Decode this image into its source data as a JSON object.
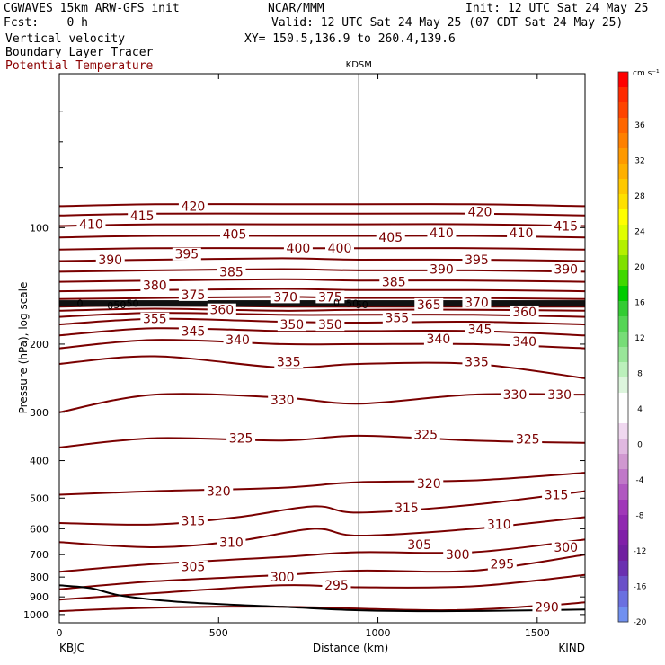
{
  "header": {
    "model": "CGWAVES 15km ARW-GFS init",
    "fcst": "Fcst:    0 h",
    "source": "NCAR/MMM",
    "init": "Init: 12 UTC Sat 24 May 25",
    "valid": "Valid: 12 UTC Sat 24 May 25 (07 CDT Sat 24 May 25)",
    "xy": "XY= 150.5,136.9 to 260.4,139.6",
    "field1": "Vertical velocity",
    "field2": "Boundary Layer Tracer",
    "field3": "Potential Temperature"
  },
  "chart_data": {
    "type": "line",
    "title": "",
    "station_top": "KDSM",
    "station_left": "KBJC",
    "station_right": "KIND",
    "xlabel": "Distance (km)",
    "ylabel": "Pressure (hPa), log scale",
    "xlim": [
      0,
      1650
    ],
    "x_ticks": [
      "0",
      "500",
      "1000",
      "1500"
    ],
    "ylim": [
      1050,
      40
    ],
    "y_scale": "log",
    "y_ticks": [
      "100",
      "200",
      "300",
      "400",
      "500",
      "600",
      "700",
      "800",
      "900",
      "1000"
    ],
    "kdsm_distance_km": 940,
    "contour_field": "Potential Temperature (K)",
    "contour_interval": 5,
    "contour_colour": "#7a0000",
    "contours": [
      {
        "value": 290,
        "points": [
          [
            0,
            980
          ],
          [
            300,
            960
          ],
          [
            700,
            955
          ],
          [
            1200,
            975
          ],
          [
            1500,
            950
          ],
          [
            1650,
            930
          ]
        ]
      },
      {
        "value": 295,
        "points": [
          [
            0,
            915
          ],
          [
            300,
            880
          ],
          [
            700,
            840
          ],
          [
            940,
            850
          ],
          [
            1300,
            845
          ],
          [
            1650,
            790
          ]
        ]
      },
      {
        "value": 300,
        "points": [
          [
            0,
            860
          ],
          [
            300,
            820
          ],
          [
            700,
            790
          ],
          [
            940,
            770
          ],
          [
            1300,
            770
          ],
          [
            1650,
            700
          ]
        ]
      },
      {
        "value": 305,
        "points": [
          [
            0,
            775
          ],
          [
            300,
            740
          ],
          [
            700,
            710
          ],
          [
            940,
            690
          ],
          [
            1300,
            690
          ],
          [
            1650,
            640
          ]
        ]
      },
      {
        "value": 310,
        "points": [
          [
            0,
            650
          ],
          [
            300,
            670
          ],
          [
            560,
            645
          ],
          [
            800,
            600
          ],
          [
            940,
            625
          ],
          [
            1300,
            600
          ],
          [
            1650,
            560
          ]
        ]
      },
      {
        "value": 315,
        "points": [
          [
            0,
            580
          ],
          [
            300,
            585
          ],
          [
            560,
            560
          ],
          [
            800,
            525
          ],
          [
            940,
            545
          ],
          [
            1300,
            520
          ],
          [
            1650,
            480
          ]
        ]
      },
      {
        "value": 320,
        "points": [
          [
            0,
            490
          ],
          [
            300,
            480
          ],
          [
            700,
            470
          ],
          [
            940,
            455
          ],
          [
            1300,
            450
          ],
          [
            1650,
            430
          ]
        ]
      },
      {
        "value": 325,
        "points": [
          [
            0,
            370
          ],
          [
            300,
            350
          ],
          [
            700,
            355
          ],
          [
            940,
            345
          ],
          [
            1300,
            355
          ],
          [
            1650,
            360
          ]
        ]
      },
      {
        "value": 330,
        "points": [
          [
            0,
            300
          ],
          [
            300,
            270
          ],
          [
            700,
            275
          ],
          [
            940,
            285
          ],
          [
            1300,
            270
          ],
          [
            1650,
            270
          ]
        ]
      },
      {
        "value": 335,
        "points": [
          [
            0,
            225
          ],
          [
            300,
            215
          ],
          [
            700,
            230
          ],
          [
            940,
            225
          ],
          [
            1300,
            225
          ],
          [
            1650,
            245
          ]
        ]
      },
      {
        "value": 340,
        "points": [
          [
            0,
            205
          ],
          [
            300,
            195
          ],
          [
            700,
            200
          ],
          [
            940,
            200
          ],
          [
            1300,
            200
          ],
          [
            1650,
            205
          ]
        ]
      },
      {
        "value": 345,
        "points": [
          [
            0,
            190
          ],
          [
            300,
            182
          ],
          [
            700,
            185
          ],
          [
            940,
            185
          ],
          [
            1300,
            185
          ],
          [
            1650,
            190
          ]
        ]
      },
      {
        "value": 350,
        "points": [
          [
            0,
            178
          ],
          [
            300,
            172
          ],
          [
            700,
            175
          ],
          [
            940,
            176
          ],
          [
            1300,
            175
          ],
          [
            1650,
            178
          ]
        ]
      },
      {
        "value": 355,
        "points": [
          [
            0,
            170
          ],
          [
            300,
            166
          ],
          [
            700,
            168
          ],
          [
            940,
            168
          ],
          [
            1300,
            168
          ],
          [
            1650,
            170
          ]
        ]
      },
      {
        "value": 360,
        "points": [
          [
            0,
            164
          ],
          [
            300,
            162
          ],
          [
            700,
            164
          ],
          [
            940,
            163
          ],
          [
            1300,
            163
          ],
          [
            1650,
            164
          ]
        ]
      },
      {
        "value": 365,
        "points": [
          [
            0,
            160
          ],
          [
            300,
            159
          ],
          [
            700,
            160
          ],
          [
            940,
            160
          ],
          [
            1300,
            160
          ],
          [
            1650,
            160
          ]
        ]
      },
      {
        "value": 370,
        "points": [
          [
            0,
            157
          ],
          [
            300,
            157
          ],
          [
            700,
            157
          ],
          [
            940,
            157
          ],
          [
            1300,
            157
          ],
          [
            1650,
            157
          ]
        ]
      },
      {
        "value": 375,
        "points": [
          [
            0,
            153
          ],
          [
            300,
            152
          ],
          [
            700,
            151
          ],
          [
            940,
            152
          ],
          [
            1300,
            152
          ],
          [
            1650,
            153
          ]
        ]
      },
      {
        "value": 380,
        "points": [
          [
            0,
            146
          ],
          [
            300,
            145
          ],
          [
            700,
            144
          ],
          [
            940,
            145
          ],
          [
            1300,
            145
          ],
          [
            1650,
            146
          ]
        ]
      },
      {
        "value": 385,
        "points": [
          [
            0,
            138
          ],
          [
            300,
            137
          ],
          [
            700,
            136
          ],
          [
            940,
            137
          ],
          [
            1300,
            137
          ],
          [
            1650,
            138
          ]
        ]
      },
      {
        "value": 390,
        "points": [
          [
            0,
            130
          ],
          [
            300,
            129
          ],
          [
            700,
            128
          ],
          [
            940,
            129
          ],
          [
            1300,
            129
          ],
          [
            1650,
            130
          ]
        ]
      },
      {
        "value": 395,
        "points": [
          [
            0,
            122
          ],
          [
            300,
            121
          ],
          [
            700,
            120
          ],
          [
            940,
            121
          ],
          [
            1300,
            121
          ],
          [
            1650,
            122
          ]
        ]
      },
      {
        "value": 400,
        "points": [
          [
            0,
            114
          ],
          [
            300,
            113
          ],
          [
            700,
            113
          ],
          [
            940,
            113
          ],
          [
            1300,
            113
          ],
          [
            1650,
            114
          ]
        ]
      },
      {
        "value": 405,
        "points": [
          [
            0,
            106
          ],
          [
            300,
            105
          ],
          [
            700,
            105
          ],
          [
            940,
            105
          ],
          [
            1300,
            105
          ],
          [
            1650,
            106
          ]
        ]
      },
      {
        "value": 410,
        "points": [
          [
            0,
            99
          ],
          [
            300,
            98
          ],
          [
            700,
            98
          ],
          [
            940,
            98
          ],
          [
            1300,
            98
          ],
          [
            1650,
            99
          ]
        ]
      },
      {
        "value": 415,
        "points": [
          [
            0,
            93
          ],
          [
            300,
            92
          ],
          [
            700,
            92
          ],
          [
            940,
            92
          ],
          [
            1300,
            92
          ],
          [
            1650,
            93
          ]
        ]
      },
      {
        "value": 420,
        "points": [
          [
            0,
            88
          ],
          [
            300,
            87
          ],
          [
            700,
            87
          ],
          [
            940,
            87
          ],
          [
            1300,
            87
          ],
          [
            1650,
            88
          ]
        ]
      }
    ],
    "contour_labels": [
      {
        "text": "410",
        "x": 100,
        "p": 98
      },
      {
        "text": "415",
        "x": 260,
        "p": 93
      },
      {
        "text": "420",
        "x": 420,
        "p": 88
      },
      {
        "text": "405",
        "x": 550,
        "p": 104
      },
      {
        "text": "400",
        "x": 750,
        "p": 113
      },
      {
        "text": "400",
        "x": 880,
        "p": 113
      },
      {
        "text": "405",
        "x": 1040,
        "p": 106
      },
      {
        "text": "410",
        "x": 1200,
        "p": 103
      },
      {
        "text": "420",
        "x": 1320,
        "p": 91
      },
      {
        "text": "410",
        "x": 1450,
        "p": 103
      },
      {
        "text": "415",
        "x": 1590,
        "p": 99
      },
      {
        "text": "390",
        "x": 160,
        "p": 121
      },
      {
        "text": "395",
        "x": 400,
        "p": 117
      },
      {
        "text": "385",
        "x": 540,
        "p": 130
      },
      {
        "text": "395",
        "x": 1310,
        "p": 121
      },
      {
        "text": "390",
        "x": 1200,
        "p": 128
      },
      {
        "text": "390",
        "x": 1590,
        "p": 128
      },
      {
        "text": "380",
        "x": 300,
        "p": 141
      },
      {
        "text": "375",
        "x": 420,
        "p": 149
      },
      {
        "text": "385",
        "x": 1050,
        "p": 138
      },
      {
        "text": "370",
        "x": 710,
        "p": 151
      },
      {
        "text": "375",
        "x": 850,
        "p": 151
      },
      {
        "text": "365",
        "x": 1160,
        "p": 158
      },
      {
        "text": "370",
        "x": 1310,
        "p": 156
      },
      {
        "text": "360",
        "x": 510,
        "p": 163
      },
      {
        "text": "360",
        "x": 1460,
        "p": 165
      },
      {
        "text": "355",
        "x": 300,
        "p": 172
      },
      {
        "text": "355",
        "x": 1060,
        "p": 171
      },
      {
        "text": "350",
        "x": 730,
        "p": 178
      },
      {
        "text": "350",
        "x": 850,
        "p": 178
      },
      {
        "text": "345",
        "x": 420,
        "p": 185
      },
      {
        "text": "345",
        "x": 1320,
        "p": 183
      },
      {
        "text": "340",
        "x": 560,
        "p": 195
      },
      {
        "text": "340",
        "x": 1190,
        "p": 194
      },
      {
        "text": "340",
        "x": 1460,
        "p": 197
      },
      {
        "text": "335",
        "x": 720,
        "p": 222
      },
      {
        "text": "335",
        "x": 1310,
        "p": 222
      },
      {
        "text": "330",
        "x": 700,
        "p": 279
      },
      {
        "text": "330",
        "x": 1430,
        "p": 270
      },
      {
        "text": "330",
        "x": 1570,
        "p": 270
      },
      {
        "text": "325",
        "x": 570,
        "p": 350
      },
      {
        "text": "325",
        "x": 1150,
        "p": 342
      },
      {
        "text": "325",
        "x": 1470,
        "p": 352
      },
      {
        "text": "320",
        "x": 500,
        "p": 480
      },
      {
        "text": "320",
        "x": 1160,
        "p": 458
      },
      {
        "text": "315",
        "x": 420,
        "p": 572
      },
      {
        "text": "315",
        "x": 1090,
        "p": 530
      },
      {
        "text": "315",
        "x": 1560,
        "p": 490
      },
      {
        "text": "310",
        "x": 540,
        "p": 650
      },
      {
        "text": "310",
        "x": 1380,
        "p": 585
      },
      {
        "text": "305",
        "x": 420,
        "p": 752
      },
      {
        "text": "305",
        "x": 1130,
        "p": 660
      },
      {
        "text": "300",
        "x": 700,
        "p": 800
      },
      {
        "text": "300",
        "x": 1250,
        "p": 700
      },
      {
        "text": "300",
        "x": 1590,
        "p": 670
      },
      {
        "text": "295",
        "x": 870,
        "p": 838
      },
      {
        "text": "295",
        "x": 1390,
        "p": 740
      },
      {
        "text": "290",
        "x": 1530,
        "p": 955
      }
    ],
    "tracer_labels": [
      {
        "text": "0",
        "x": 65,
        "p": 157
      },
      {
        "text": "0",
        "x": 160,
        "p": 159
      },
      {
        "text": "50",
        "x": 190,
        "p": 158
      },
      {
        "text": "50",
        "x": 230,
        "p": 157
      },
      {
        "text": "0",
        "x": 870,
        "p": 156
      },
      {
        "text": "50",
        "x": 920,
        "p": 157
      },
      {
        "text": "50",
        "x": 950,
        "p": 158
      }
    ],
    "tracer_band": {
      "p_top": 154,
      "p_bottom": 160
    },
    "terrain": [
      [
        0,
        840
      ],
      [
        100,
        855
      ],
      [
        200,
        895
      ],
      [
        400,
        930
      ],
      [
        700,
        955
      ],
      [
        940,
        975
      ],
      [
        1200,
        980
      ],
      [
        1500,
        975
      ],
      [
        1650,
        970
      ]
    ],
    "colorbar": {
      "units": "cm s⁻¹",
      "labels": [
        "36",
        "32",
        "28",
        "24",
        "20",
        "16",
        "12",
        "8",
        "4",
        "0",
        "-4",
        "-8",
        "-12",
        "-16",
        "-20"
      ],
      "colors": [
        "#ff0000",
        "#ff2a00",
        "#ff4400",
        "#ff6600",
        "#ff8000",
        "#ff9900",
        "#ffb000",
        "#ffc800",
        "#ffe000",
        "#ffff00",
        "#e0ff00",
        "#b4f000",
        "#80e000",
        "#40d800",
        "#00cc00",
        "#33cc33",
        "#55d555",
        "#77dd77",
        "#99e699",
        "#bbf0bb",
        "#ddf5dd",
        "#ffffff",
        "#ffffff",
        "#f0d8f0",
        "#e0b8e0",
        "#d098d0",
        "#c078c8",
        "#b058c0",
        "#a038b8",
        "#9028b0",
        "#8020a8",
        "#7020a0",
        "#6a30b0",
        "#6a50c8",
        "#6a70e0",
        "#7090f0"
      ]
    }
  }
}
